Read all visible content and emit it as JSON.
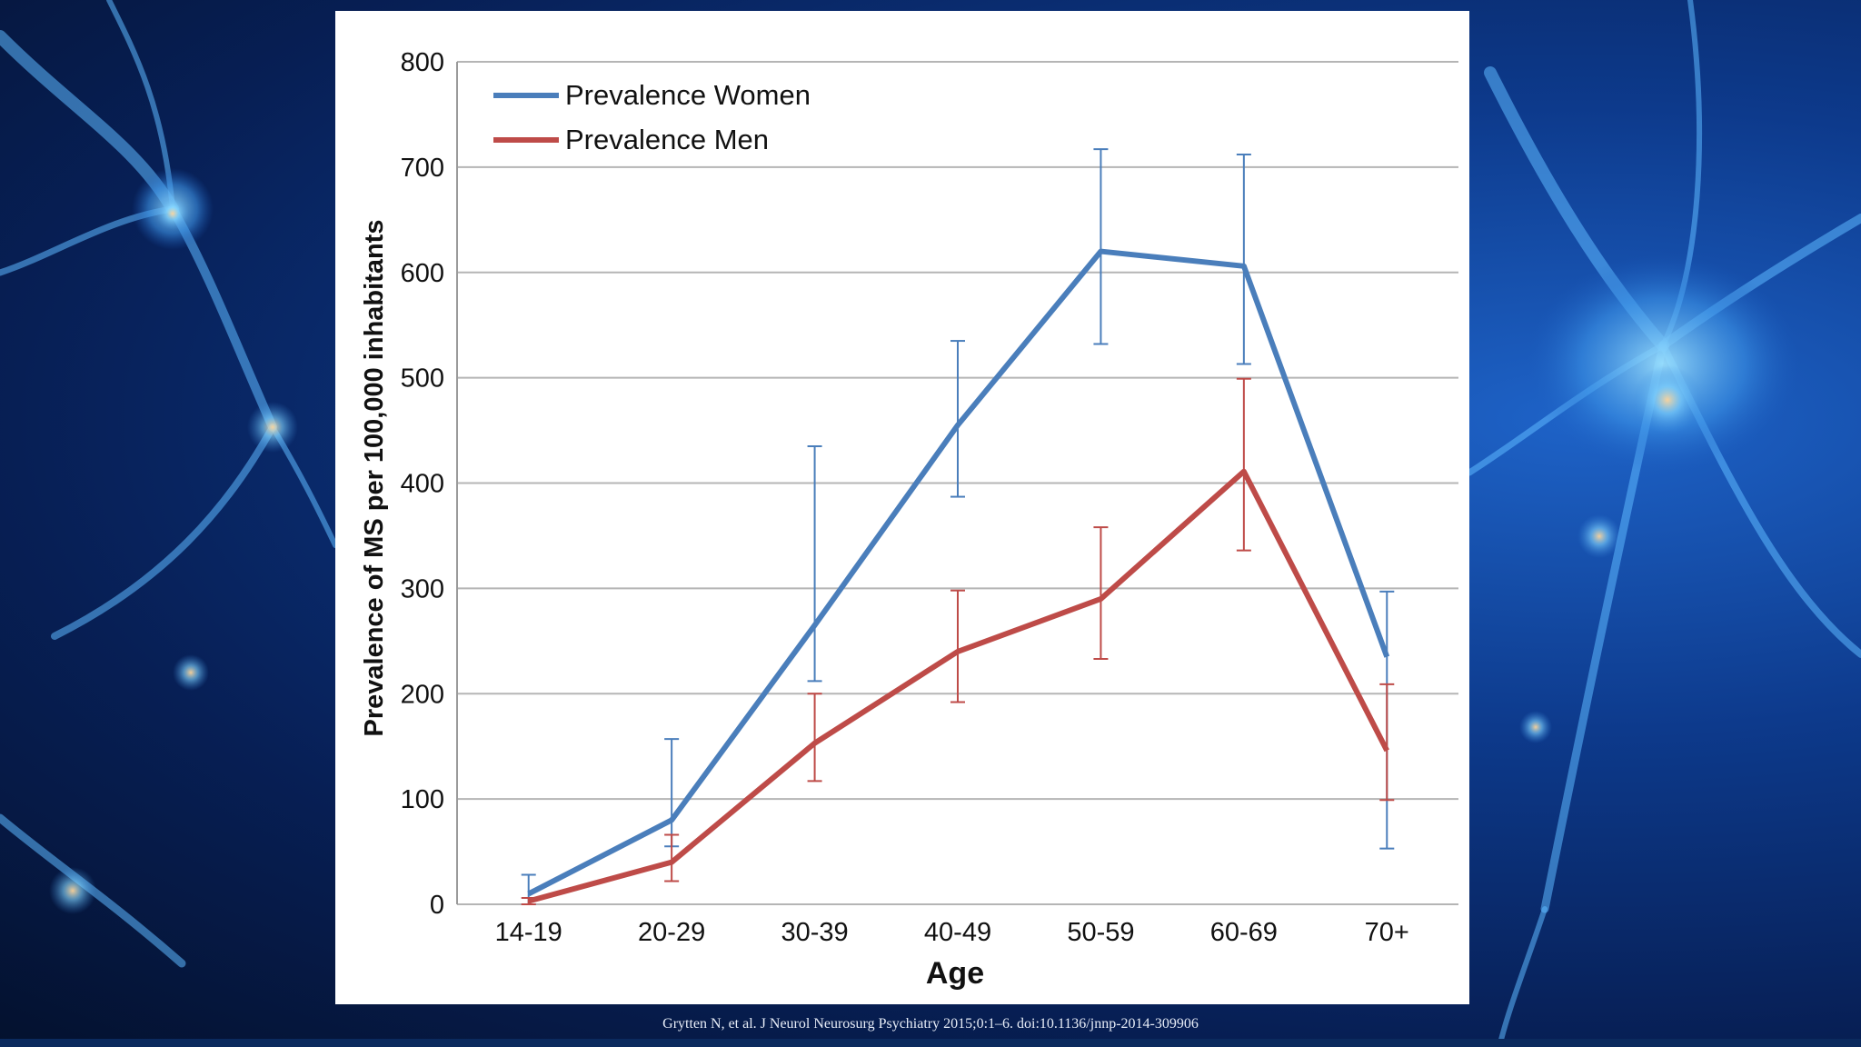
{
  "slide": {
    "citation": "Grytten N, et al. J Neurol Neurosurg Psychiatry 2015;0:1–6. doi:10.1136/jnnp-2014-309906"
  },
  "chart_data": {
    "type": "line",
    "title": "",
    "xlabel": "Age",
    "ylabel": "Prevalence of MS per 100,000 inhabitants",
    "categories": [
      "14-19",
      "20-29",
      "30-39",
      "40-49",
      "50-59",
      "60-69",
      "70+"
    ],
    "ylim": [
      0,
      800
    ],
    "yticks": [
      0,
      100,
      200,
      300,
      400,
      500,
      600,
      700,
      800
    ],
    "grid": true,
    "legend_position": "top-left",
    "series": [
      {
        "name": "Prevalence Women",
        "color": "#4a7ebb",
        "values": [
          10,
          80,
          265,
          455,
          620,
          606,
          235
        ],
        "error_low": [
          0,
          55,
          212,
          387,
          532,
          513,
          53
        ],
        "error_high": [
          28,
          157,
          435,
          535,
          717,
          712,
          297
        ]
      },
      {
        "name": "Prevalence Men",
        "color": "#be4b48",
        "values": [
          3,
          40,
          153,
          240,
          290,
          411,
          146
        ],
        "error_low": [
          0,
          22,
          117,
          192,
          233,
          336,
          99
        ],
        "error_high": [
          6,
          66,
          200,
          298,
          358,
          499,
          209
        ]
      }
    ]
  }
}
